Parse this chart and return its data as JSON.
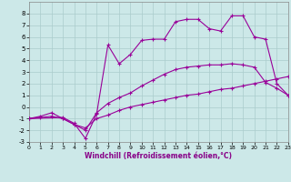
{
  "xlabel": "Windchill (Refroidissement éolien,°C)",
  "bg_color": "#cce8e8",
  "line_color": "#990099",
  "grid_color": "#aacccc",
  "xlim": [
    0,
    23
  ],
  "ylim": [
    -3,
    9
  ],
  "xtick_labels": [
    "0",
    "1",
    "2",
    "3",
    "4",
    "5",
    "6",
    "7",
    "8",
    "9",
    "10",
    "11",
    "12",
    "13",
    "14",
    "15",
    "16",
    "17",
    "18",
    "19",
    "20",
    "21",
    "22",
    "23"
  ],
  "ytick_labels": [
    "-3",
    "-2",
    "-1",
    "0",
    "1",
    "2",
    "3",
    "4",
    "5",
    "6",
    "7",
    "8"
  ],
  "ytick_vals": [
    -3,
    -2,
    -1,
    0,
    1,
    2,
    3,
    4,
    5,
    6,
    7,
    8
  ],
  "line1_x": [
    0,
    1,
    2,
    3,
    4,
    5,
    6,
    7,
    8,
    9,
    10,
    11,
    12,
    13,
    14,
    15,
    16,
    17,
    18,
    19,
    20,
    21,
    22,
    23
  ],
  "line1_y": [
    -1,
    -0.9,
    -0.8,
    -1.0,
    -1.5,
    -1.8,
    -1.0,
    -0.7,
    -0.3,
    0.0,
    0.2,
    0.4,
    0.6,
    0.8,
    1.0,
    1.1,
    1.3,
    1.5,
    1.6,
    1.8,
    2.0,
    2.2,
    2.4,
    2.6
  ],
  "line2_x": [
    0,
    1,
    2,
    3,
    4,
    5,
    6,
    7,
    8,
    9,
    10,
    11,
    12,
    13,
    14,
    15,
    16,
    17,
    18,
    19,
    20,
    21,
    22,
    23
  ],
  "line2_y": [
    -1,
    -0.8,
    -0.5,
    -1.0,
    -1.5,
    -2.0,
    -0.5,
    0.3,
    0.8,
    1.2,
    1.8,
    2.3,
    2.8,
    3.2,
    3.4,
    3.5,
    3.6,
    3.6,
    3.7,
    3.6,
    3.4,
    2.1,
    1.6,
    1.0
  ],
  "line3_x": [
    0,
    3,
    4,
    5,
    6,
    7,
    8,
    9,
    10,
    11,
    12,
    13,
    14,
    15,
    16,
    17,
    18,
    19,
    20,
    21,
    22,
    23
  ],
  "line3_y": [
    -1,
    -0.9,
    -1.4,
    -2.7,
    -0.6,
    5.3,
    3.7,
    4.5,
    5.7,
    5.8,
    5.8,
    7.3,
    7.5,
    7.5,
    6.7,
    6.5,
    7.8,
    7.8,
    6.0,
    5.8,
    2.0,
    1.0
  ]
}
